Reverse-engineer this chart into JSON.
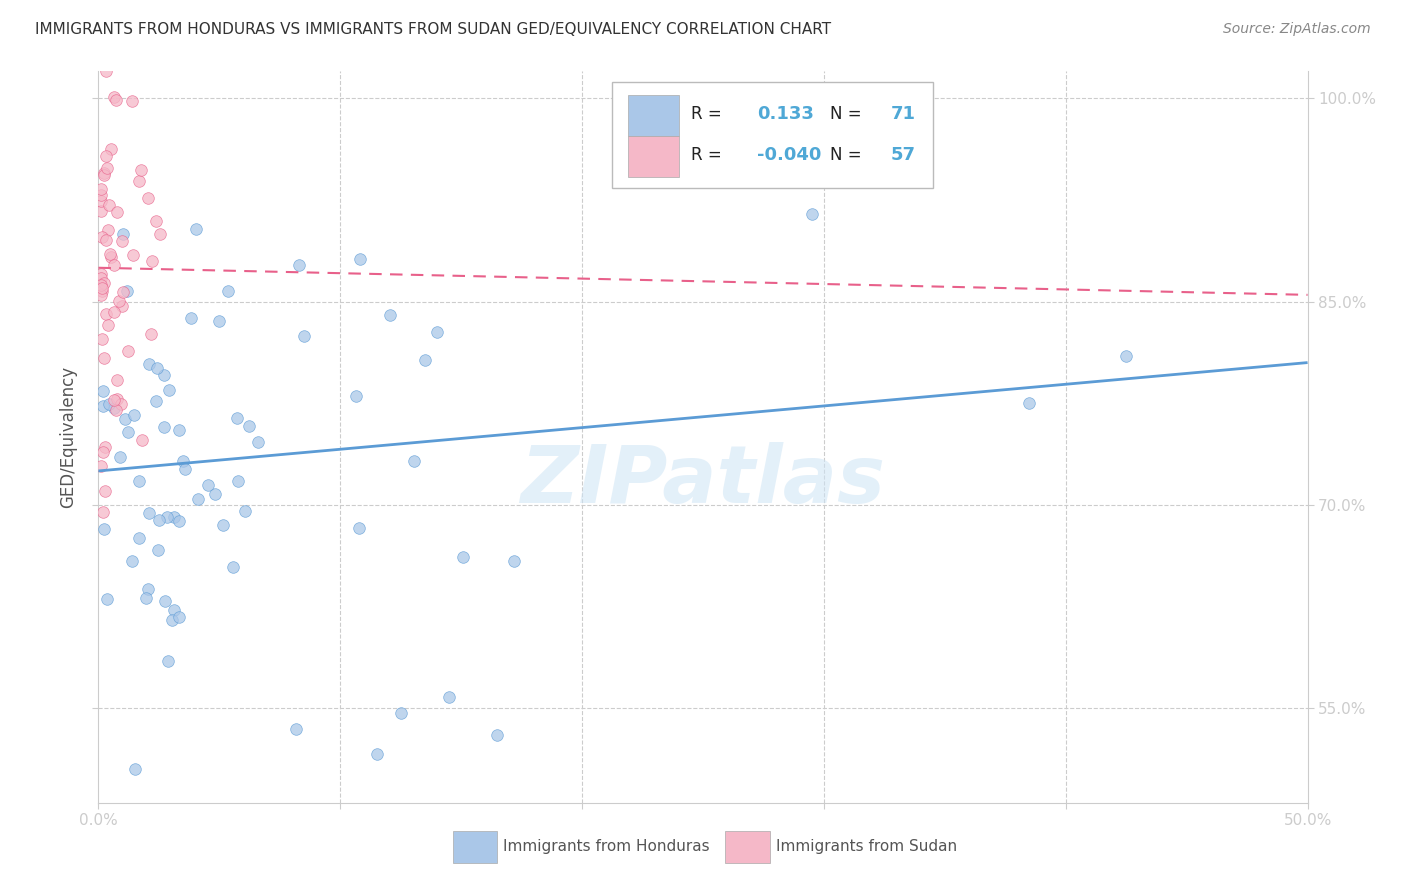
{
  "title": "IMMIGRANTS FROM HONDURAS VS IMMIGRANTS FROM SUDAN GED/EQUIVALENCY CORRELATION CHART",
  "source": "Source: ZipAtlas.com",
  "ylabel": "GED/Equivalency",
  "legend_label1": "Immigrants from Honduras",
  "legend_label2": "Immigrants from Sudan",
  "r1_text": "0.133",
  "n1_text": "71",
  "r2_text": "-0.040",
  "n2_text": "57",
  "xlim": [
    0.0,
    0.5
  ],
  "ylim": [
    0.48,
    1.02
  ],
  "xtick_positions": [
    0.0,
    0.1,
    0.2,
    0.3,
    0.4,
    0.5
  ],
  "xtick_labels": [
    "0.0%",
    "",
    "",
    "",
    "",
    "50.0%"
  ],
  "ytick_positions": [
    1.0,
    0.85,
    0.7,
    0.55
  ],
  "ytick_labels": [
    "100.0%",
    "85.0%",
    "70.0%",
    "55.0%"
  ],
  "color_honduras": "#aac7e8",
  "color_sudan": "#f5b8c8",
  "line_color_honduras": "#5b9bd5",
  "line_color_sudan": "#e8608a",
  "grid_color": "#cccccc",
  "watermark": "ZIPatlas",
  "background_color": "#ffffff",
  "scatter_alpha": 0.75,
  "marker_size": 70,
  "honduras_trend_x0": 0.0,
  "honduras_trend_y0": 0.725,
  "honduras_trend_x1": 0.5,
  "honduras_trend_y1": 0.805,
  "sudan_trend_x0": 0.0,
  "sudan_trend_y0": 0.875,
  "sudan_trend_x1": 0.5,
  "sudan_trend_y1": 0.855
}
